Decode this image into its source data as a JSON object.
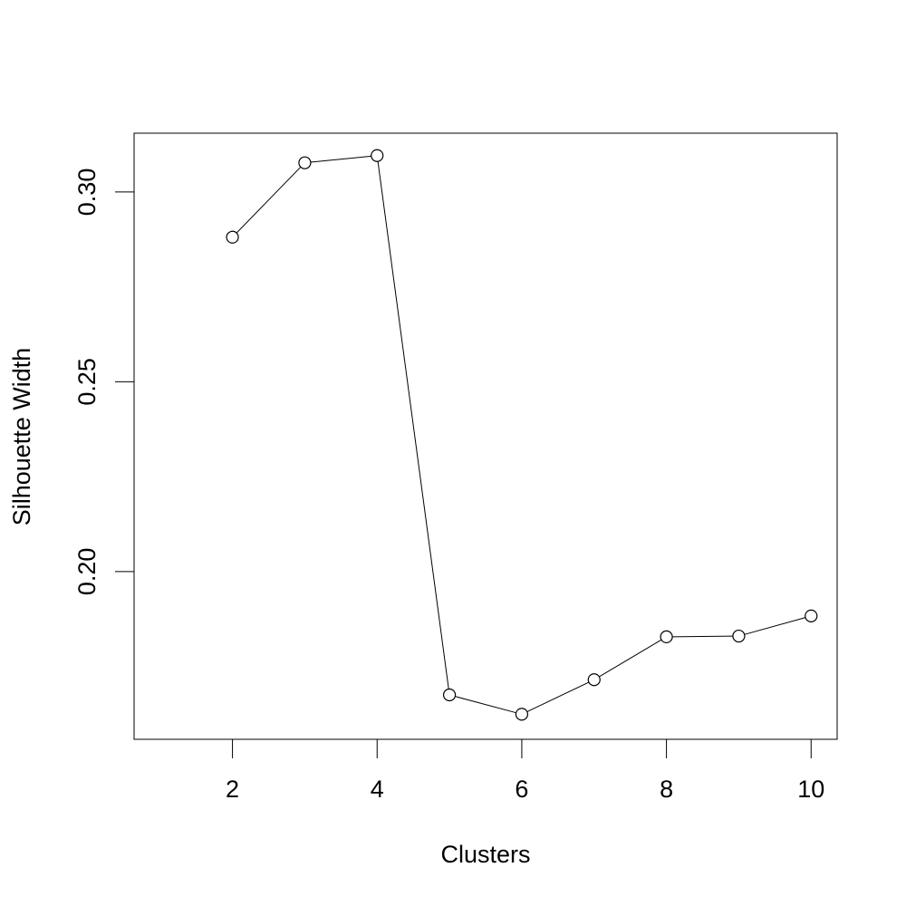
{
  "chart_data": {
    "type": "line",
    "title": "",
    "xlabel": "Clusters",
    "ylabel": "Silhouette Width",
    "x": [
      2,
      3,
      4,
      5,
      6,
      7,
      8,
      9,
      10
    ],
    "series": [
      {
        "values": [
          0.2881,
          0.3077,
          0.3096,
          0.1675,
          0.1624,
          0.1715,
          0.1828,
          0.183,
          0.1883
        ]
      }
    ],
    "xlim": [
      0.64,
      10.36
    ],
    "ylim": [
      0.1558,
      0.3155
    ],
    "x_ticks": [
      2,
      4,
      6,
      8,
      10
    ],
    "x_tick_labels": [
      "2",
      "4",
      "6",
      "8",
      "10"
    ],
    "y_ticks": [
      0.2,
      0.25,
      0.3
    ],
    "y_tick_labels": [
      "0.20",
      "0.25",
      "0.30"
    ],
    "marker": "open-circle",
    "grid": false,
    "colors": {
      "line": "#000000",
      "background": "#ffffff"
    }
  }
}
